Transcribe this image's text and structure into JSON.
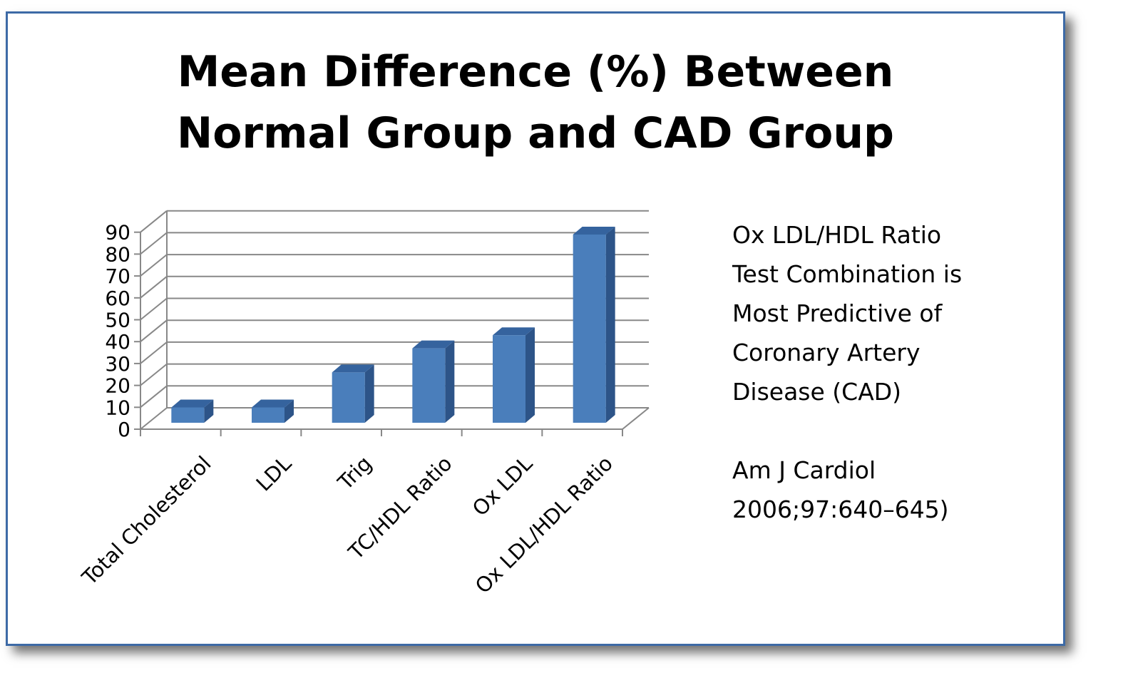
{
  "chart_data": {
    "type": "bar",
    "title_lines": [
      "Mean Difference (%) Between",
      "Normal Group and CAD Group"
    ],
    "categories": [
      "Total Cholesterol",
      "LDL",
      "Trig",
      "TC/HDL Ratio",
      "Ox LDL",
      "Ox LDL/HDL Ratio"
    ],
    "values": [
      7,
      7,
      23,
      34,
      40,
      86
    ],
    "yticks": [
      "0",
      "10",
      "20",
      "30",
      "40",
      "50",
      "60",
      "70",
      "80",
      "90"
    ],
    "ylim": [
      0,
      90
    ],
    "xlabel": "",
    "ylabel": "",
    "grid": true,
    "legend": null,
    "bar_style": "3d-column",
    "colors": {
      "bar_front": "#4a7ebb",
      "bar_side": "#2d5488",
      "bar_top": "#35639e",
      "grid": "#888888",
      "border": "#3d6aa6"
    }
  },
  "annotation": {
    "lines": [
      "Ox LDL/HDL Ratio",
      "Test Combination is",
      "Most Predictive of",
      "Coronary Artery",
      "Disease (CAD)",
      "",
      "Am J Cardiol",
      "2006;97:640–645)"
    ]
  }
}
